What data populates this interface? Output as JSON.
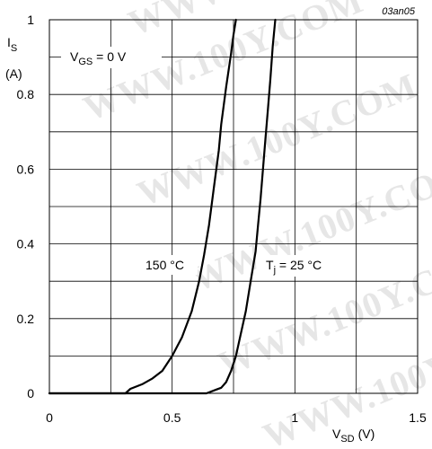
{
  "chart_data": {
    "type": "line",
    "title": "",
    "figure_code": "03an05",
    "watermark": "WWW.100Y.COM",
    "y_axis": {
      "label_main": "I",
      "label_sub": "S",
      "unit": "(A)",
      "lim": [
        0,
        1
      ],
      "ticks": [
        "0",
        "0.2",
        "0.4",
        "0.6",
        "0.8",
        "1"
      ]
    },
    "x_axis": {
      "label_main": "V",
      "label_sub": "SD",
      "unit": "(V)",
      "lim": [
        0,
        1.5
      ],
      "ticks": [
        "0",
        "0.5",
        "1",
        "1.5"
      ]
    },
    "condition": {
      "main": "V",
      "sub": "GS",
      "rest": " = 0 V"
    },
    "grid": true,
    "line_color": "#000000",
    "series": [
      {
        "name": "150 °C",
        "x": [
          0.0,
          0.31,
          0.33,
          0.38,
          0.42,
          0.46,
          0.5,
          0.54,
          0.58,
          0.61,
          0.63,
          0.65,
          0.67,
          0.69,
          0.7,
          0.72,
          0.74,
          0.75,
          0.76
        ],
        "y": [
          0.0,
          0.0,
          0.012,
          0.025,
          0.04,
          0.06,
          0.1,
          0.15,
          0.22,
          0.3,
          0.37,
          0.45,
          0.55,
          0.65,
          0.72,
          0.82,
          0.91,
          0.96,
          1.0
        ]
      },
      {
        "name": "T_j = 25 °C",
        "label": {
          "main": "T",
          "sub": "j",
          "rest": " = 25 °C"
        },
        "x": [
          0.0,
          0.64,
          0.68,
          0.7,
          0.72,
          0.74,
          0.76,
          0.78,
          0.8,
          0.82,
          0.84,
          0.85,
          0.86,
          0.87,
          0.88,
          0.89,
          0.9,
          0.91,
          0.92
        ],
        "y": [
          0.0,
          0.0,
          0.01,
          0.015,
          0.03,
          0.06,
          0.1,
          0.16,
          0.22,
          0.3,
          0.38,
          0.45,
          0.52,
          0.6,
          0.68,
          0.76,
          0.84,
          0.93,
          1.0
        ]
      }
    ]
  }
}
